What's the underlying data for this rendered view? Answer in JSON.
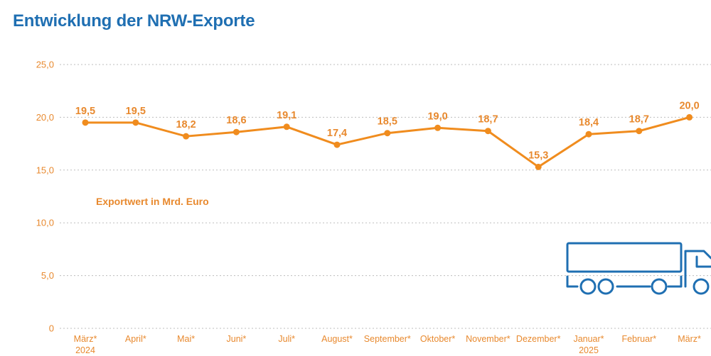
{
  "title": "Entwicklung der NRW-Exporte",
  "colors": {
    "title": "#1f6fb2",
    "series": "#f08c1e",
    "text": "#e8892e",
    "grid": "#bdbdbd",
    "icon": "#1f6fb2"
  },
  "icon": "truck-icon",
  "chart_data": {
    "type": "line",
    "title": "Entwicklung der NRW-Exporte",
    "annotation": "Exportwert in Mrd. Euro",
    "categories": [
      "März*",
      "April*",
      "Mai*",
      "Juni*",
      "Juli*",
      "August*",
      "September*",
      "Oktober*",
      "November*",
      "Dezember*",
      "Januar*",
      "Februar*",
      "März*"
    ],
    "category_sublabels": [
      "2024",
      "",
      "",
      "",
      "",
      "",
      "",
      "",
      "",
      "",
      "2025",
      "",
      ""
    ],
    "series": [
      {
        "values": [
          19.5,
          19.5,
          18.2,
          18.6,
          19.1,
          17.4,
          18.5,
          19.0,
          18.7,
          15.3,
          18.4,
          18.7,
          20.0
        ]
      }
    ],
    "data_labels": [
      "19,5",
      "19,5",
      "18,2",
      "18,6",
      "19,1",
      "17,4",
      "18,5",
      "19,0",
      "18,7",
      "15,3",
      "18,4",
      "18,7",
      "20,0"
    ],
    "y_ticks": [
      0,
      5,
      10,
      15,
      20,
      25
    ],
    "y_tick_labels": [
      "0",
      "5,0",
      "10,0",
      "15,0",
      "20,0",
      "25,0"
    ],
    "ylim": [
      0,
      25
    ],
    "grid": "horizontal dotted",
    "legend": "none"
  }
}
